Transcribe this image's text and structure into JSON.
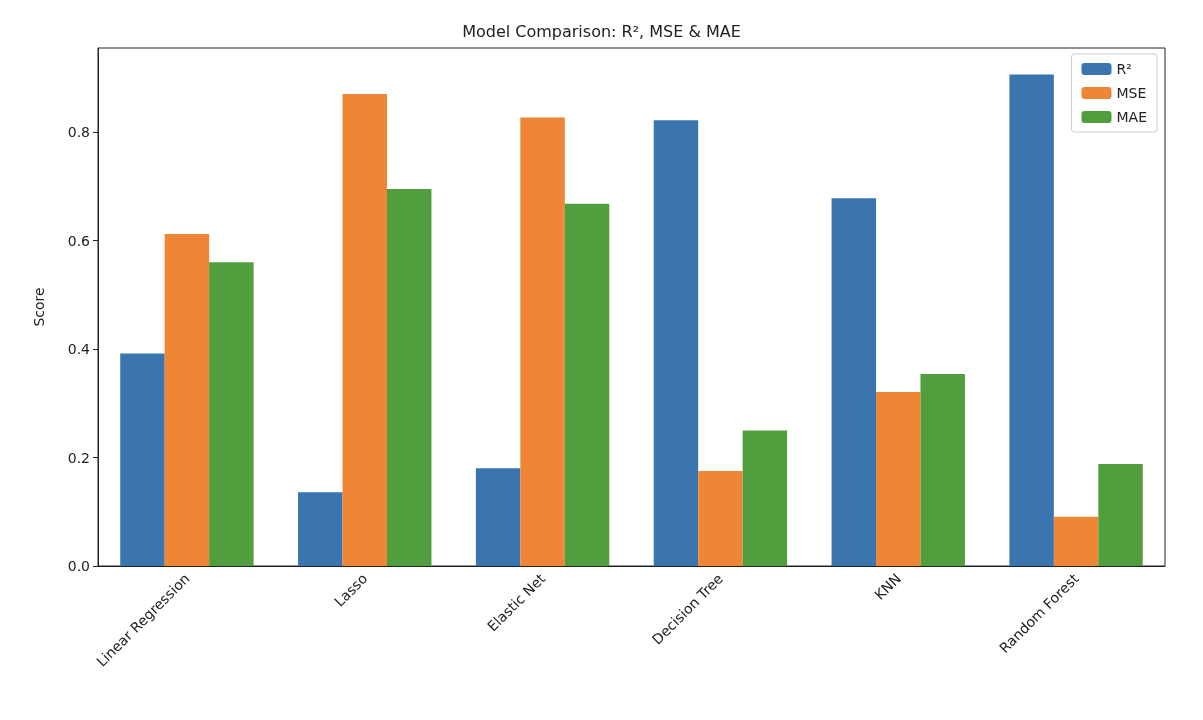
{
  "chart_data": {
    "type": "bar",
    "title": "Model Comparison: R², MSE & MAE",
    "ylabel": "Score",
    "categories": [
      "Linear Regression",
      "Lasso",
      "Elastic Net",
      "Decision Tree",
      "KNN",
      "Random Forest"
    ],
    "series": [
      {
        "name": "R²",
        "color": "#3a75af",
        "values": [
          0.392,
          0.136,
          0.18,
          0.822,
          0.678,
          0.906
        ]
      },
      {
        "name": "MSE",
        "color": "#ee8636",
        "values": [
          0.612,
          0.87,
          0.827,
          0.175,
          0.321,
          0.091
        ]
      },
      {
        "name": "MAE",
        "color": "#519e3e",
        "values": [
          0.56,
          0.695,
          0.668,
          0.25,
          0.354,
          0.188
        ]
      }
    ],
    "ylim": [
      0,
      0.955
    ],
    "yticks": [
      {
        "value": 0,
        "label": "0.0"
      },
      0.2,
      0.4,
      0.6,
      0.8
    ],
    "grid": false,
    "legend": "top right"
  }
}
